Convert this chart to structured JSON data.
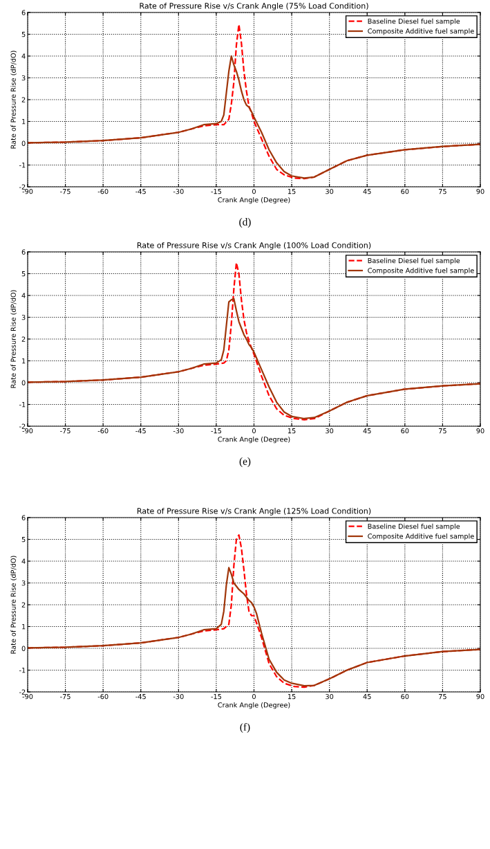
{
  "chart_data": [
    {
      "type": "line",
      "title": "Rate of Pressure Rise v/s Crank Angle (75% Load Condition)",
      "xlabel": "Crank Angle (Degree)",
      "ylabel": "Rate of Pressure Rise (dP/dO)",
      "annotations": [
        "(d)"
      ],
      "xlim": [
        -90,
        90
      ],
      "xticks": [
        -90,
        -75,
        -60,
        -45,
        -30,
        -15,
        0,
        15,
        30,
        45,
        60,
        75,
        90
      ],
      "ylim": [
        -2,
        6
      ],
      "yticks": [
        -2,
        -1,
        0,
        1,
        2,
        3,
        4,
        5,
        6
      ],
      "grid": true,
      "legend": "top right",
      "series": [
        {
          "name": "Baseline Diesel fuel sample",
          "color": "#ff0000",
          "line_style": "dashed",
          "x": [
            -90,
            -75,
            -60,
            -45,
            -30,
            -20,
            -15,
            -12,
            -10,
            -9,
            -8,
            -7,
            -6,
            -5,
            -4,
            -3,
            -2,
            -1,
            0,
            3,
            6,
            9,
            12,
            16,
            20,
            24,
            30,
            37,
            45,
            60,
            75,
            90
          ],
          "values": [
            0.02,
            0.05,
            0.12,
            0.25,
            0.5,
            0.8,
            0.85,
            0.85,
            1.1,
            1.8,
            2.8,
            4.5,
            5.45,
            4.6,
            3.3,
            2.4,
            1.7,
            1.4,
            1.0,
            0.2,
            -0.6,
            -1.2,
            -1.45,
            -1.6,
            -1.62,
            -1.55,
            -1.2,
            -0.8,
            -0.55,
            -0.3,
            -0.15,
            -0.05
          ]
        },
        {
          "name": "Composite Additive fuel sample",
          "color": "#a0360a",
          "line_style": "solid",
          "x": [
            -90,
            -75,
            -60,
            -45,
            -30,
            -25,
            -20,
            -15,
            -13,
            -12,
            -11,
            -10,
            -9,
            -8,
            -7,
            -6,
            -5,
            -4,
            -3,
            -2,
            -1,
            0,
            3,
            6,
            9,
            12,
            15,
            20,
            24,
            30,
            37,
            45,
            60,
            75,
            90
          ],
          "values": [
            0.02,
            0.05,
            0.12,
            0.25,
            0.5,
            0.65,
            0.85,
            0.9,
            1.0,
            1.3,
            2.3,
            3.3,
            4.0,
            3.6,
            3.3,
            2.9,
            2.4,
            2.0,
            1.75,
            1.65,
            1.45,
            1.2,
            0.5,
            -0.3,
            -0.9,
            -1.3,
            -1.5,
            -1.6,
            -1.55,
            -1.2,
            -0.8,
            -0.55,
            -0.3,
            -0.15,
            -0.05
          ]
        }
      ]
    },
    {
      "type": "line",
      "title": "Rate of Pressure Rise v/s Crank Angle (100% Load Condition)",
      "xlabel": "Crank Angle (Degree)",
      "ylabel": "Rate of Pressure Rise (dP/dO)",
      "annotations": [
        "(e)"
      ],
      "xlim": [
        -90,
        90
      ],
      "xticks": [
        -90,
        -75,
        -60,
        -45,
        -30,
        -15,
        0,
        15,
        30,
        45,
        60,
        75,
        90
      ],
      "ylim": [
        -2,
        6
      ],
      "yticks": [
        -2,
        -1,
        0,
        1,
        2,
        3,
        4,
        5,
        6
      ],
      "grid": true,
      "legend": "top right",
      "series": [
        {
          "name": "Baseline Diesel fuel sample",
          "color": "#ff0000",
          "line_style": "dashed",
          "x": [
            -90,
            -75,
            -60,
            -45,
            -30,
            -20,
            -15,
            -12,
            -11,
            -10,
            -9,
            -8,
            -7,
            -6,
            -5,
            -4,
            -3,
            -2,
            -1,
            0,
            3,
            6,
            9,
            12,
            16,
            20,
            24,
            30,
            37,
            45,
            60,
            75,
            90
          ],
          "values": [
            0.02,
            0.05,
            0.12,
            0.25,
            0.5,
            0.8,
            0.85,
            0.9,
            1.0,
            1.5,
            2.7,
            4.3,
            5.5,
            5.0,
            3.8,
            2.9,
            2.3,
            1.9,
            1.6,
            1.3,
            0.3,
            -0.6,
            -1.2,
            -1.5,
            -1.65,
            -1.7,
            -1.65,
            -1.3,
            -0.9,
            -0.6,
            -0.3,
            -0.15,
            -0.05
          ]
        },
        {
          "name": "Composite Additive fuel sample",
          "color": "#a0360a",
          "line_style": "solid",
          "x": [
            -90,
            -75,
            -60,
            -45,
            -30,
            -25,
            -20,
            -15,
            -13,
            -12,
            -11,
            -10,
            -9,
            -8,
            -7,
            -6,
            -5,
            -4,
            -3,
            -2,
            -1,
            0,
            3,
            6,
            9,
            12,
            15,
            20,
            24,
            30,
            37,
            45,
            60,
            75,
            90
          ],
          "values": [
            0.02,
            0.05,
            0.12,
            0.25,
            0.5,
            0.65,
            0.85,
            0.9,
            1.05,
            1.5,
            2.6,
            3.7,
            3.8,
            3.85,
            3.3,
            2.8,
            2.5,
            2.2,
            2.0,
            1.75,
            1.6,
            1.4,
            0.6,
            -0.2,
            -0.9,
            -1.35,
            -1.55,
            -1.65,
            -1.6,
            -1.3,
            -0.9,
            -0.6,
            -0.3,
            -0.15,
            -0.05
          ]
        }
      ]
    },
    {
      "type": "line",
      "title": "Rate of Pressure Rise v/s Crank Angle (125% Load Condition)",
      "xlabel": "Crank Angle (Degree)",
      "ylabel": "Rate of Pressure Rise (dP/dO)",
      "annotations": [
        "(f)"
      ],
      "xlim": [
        -90,
        90
      ],
      "xticks": [
        -90,
        -75,
        -60,
        -45,
        -30,
        -15,
        0,
        15,
        30,
        45,
        60,
        75,
        90
      ],
      "ylim": [
        -2,
        6
      ],
      "yticks": [
        -2,
        -1,
        0,
        1,
        2,
        3,
        4,
        5,
        6
      ],
      "grid": true,
      "legend": "top right",
      "series": [
        {
          "name": "Baseline Diesel fuel sample",
          "color": "#ff0000",
          "line_style": "dashed",
          "x": [
            -90,
            -75,
            -60,
            -45,
            -30,
            -20,
            -15,
            -12,
            -10,
            -9,
            -8,
            -7,
            -6,
            -5,
            -4,
            -3,
            -2,
            -1,
            0,
            3,
            6,
            9,
            12,
            16,
            20,
            24,
            30,
            37,
            45,
            60,
            75,
            90
          ],
          "values": [
            0.02,
            0.05,
            0.12,
            0.25,
            0.5,
            0.8,
            0.85,
            0.9,
            1.1,
            2.0,
            3.8,
            5.0,
            5.2,
            4.6,
            3.6,
            2.5,
            1.7,
            1.5,
            1.5,
            0.5,
            -0.7,
            -1.3,
            -1.6,
            -1.75,
            -1.78,
            -1.7,
            -1.4,
            -1.0,
            -0.65,
            -0.35,
            -0.15,
            -0.05
          ]
        },
        {
          "name": "Composite Additive fuel sample",
          "color": "#a0360a",
          "line_style": "solid",
          "x": [
            -90,
            -75,
            -60,
            -45,
            -30,
            -25,
            -20,
            -15,
            -13,
            -12,
            -11,
            -10,
            -9,
            -8,
            -7,
            -6,
            -5,
            -4,
            -3,
            -2,
            -1,
            0,
            1,
            3,
            6,
            9,
            12,
            15,
            20,
            24,
            30,
            37,
            45,
            60,
            75,
            90
          ],
          "values": [
            0.02,
            0.05,
            0.12,
            0.25,
            0.5,
            0.65,
            0.85,
            0.9,
            1.1,
            1.7,
            2.9,
            3.7,
            3.4,
            3.0,
            2.85,
            2.7,
            2.6,
            2.5,
            2.35,
            2.2,
            2.1,
            1.9,
            1.6,
            0.7,
            -0.5,
            -1.1,
            -1.45,
            -1.6,
            -1.72,
            -1.7,
            -1.4,
            -1.0,
            -0.65,
            -0.35,
            -0.15,
            -0.05
          ]
        }
      ]
    }
  ]
}
